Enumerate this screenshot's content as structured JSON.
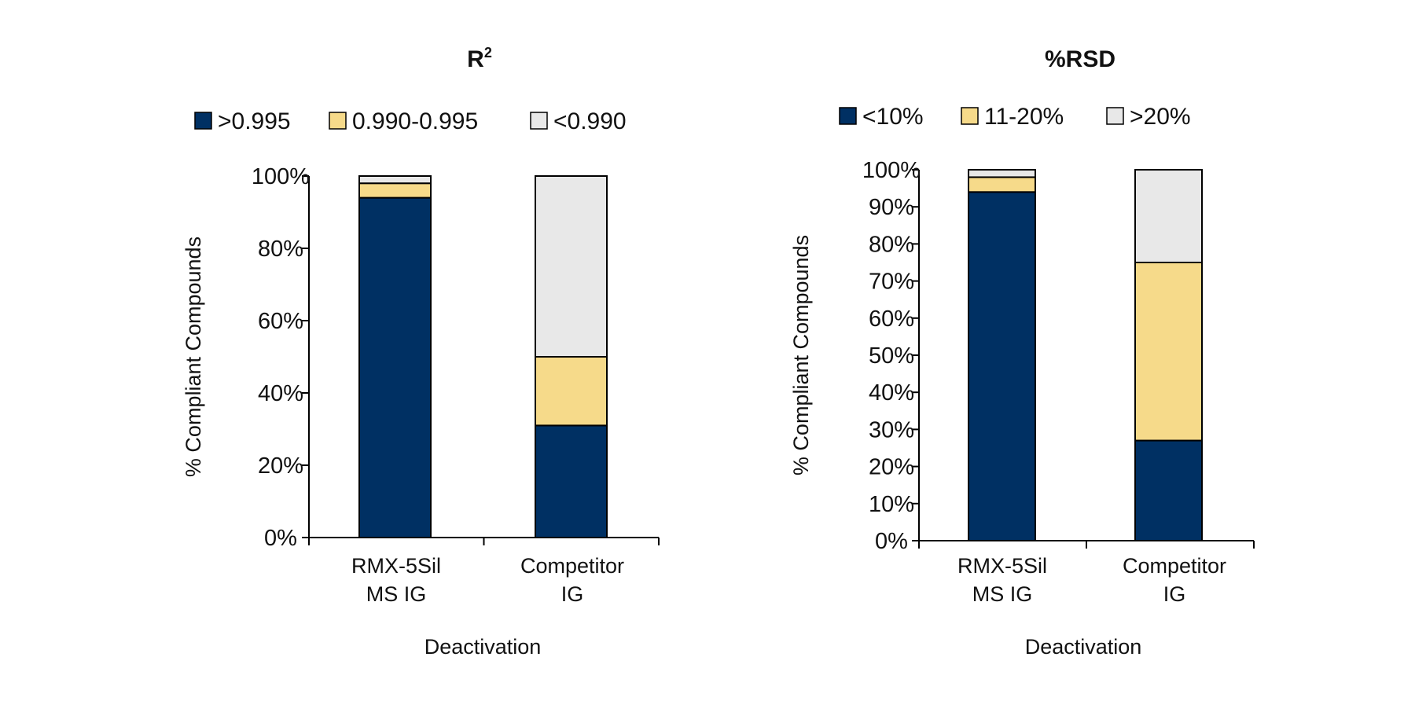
{
  "colors": {
    "dark": "#003063",
    "yellow": "#f6da8a",
    "gray": "#e8e8e8",
    "outline": "#000000"
  },
  "chart_data": [
    {
      "type": "bar",
      "stacked": true,
      "title": "R",
      "title_superscript": "2",
      "xlabel": "Deactivation",
      "ylabel": "% Compliant Compounds",
      "ylim": [
        0,
        100
      ],
      "yticks": [
        "0%",
        "20%",
        "40%",
        "60%",
        "80%",
        "100%"
      ],
      "ytick_values": [
        0,
        20,
        40,
        60,
        80,
        100
      ],
      "categories": [
        [
          "RMX-5Sil",
          "MS IG"
        ],
        [
          "Competitor",
          "IG"
        ]
      ],
      "legend_position": "top",
      "series": [
        {
          "name": ">0.995",
          "color": "#003063",
          "values": [
            94,
            31
          ]
        },
        {
          "name": "0.990-0.995",
          "color": "#f6da8a",
          "values": [
            4,
            19
          ]
        },
        {
          "name": "<0.990",
          "color": "#e8e8e8",
          "values": [
            2,
            50
          ]
        }
      ]
    },
    {
      "type": "bar",
      "stacked": true,
      "title": "%RSD",
      "title_superscript": "",
      "xlabel": "Deactivation",
      "ylabel": "% Compliant Compounds",
      "ylim": [
        0,
        100
      ],
      "yticks": [
        "0%",
        "10%",
        "20%",
        "30%",
        "40%",
        "50%",
        "60%",
        "70%",
        "80%",
        "90%",
        "100%"
      ],
      "ytick_values": [
        0,
        10,
        20,
        30,
        40,
        50,
        60,
        70,
        80,
        90,
        100
      ],
      "categories": [
        [
          "RMX-5Sil",
          "MS IG"
        ],
        [
          "Competitor",
          "IG"
        ]
      ],
      "legend_position": "top",
      "series": [
        {
          "name": "<10%",
          "color": "#003063",
          "values": [
            94,
            27
          ]
        },
        {
          "name": "11-20%",
          "color": "#f6da8a",
          "values": [
            4,
            48
          ]
        },
        {
          "name": ">20%",
          "color": "#e8e8e8",
          "values": [
            2,
            25
          ]
        }
      ]
    }
  ]
}
